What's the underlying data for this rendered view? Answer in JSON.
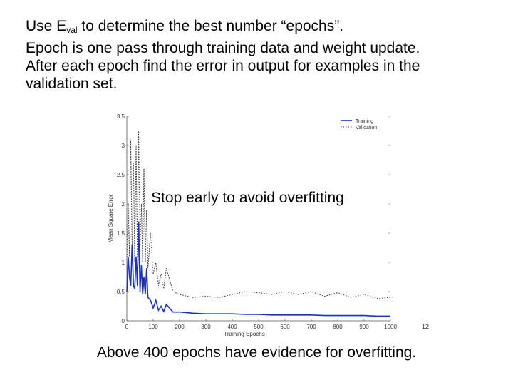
{
  "intro": {
    "line1_pre": "Use E",
    "line1_sub": "val",
    "line1_post": " to determine the best number “epochs”.",
    "line2": "Epoch is one pass through training data and weight update.",
    "line3": "After each epoch find the error in output for examples in the",
    "line4": "validation set."
  },
  "overlay_label": "Stop early to avoid overfitting",
  "caption": "Above 400 epochs have evidence for overfitting.",
  "slide_number": "12",
  "chart_data": {
    "type": "line",
    "xlabel": "Training Epochs",
    "ylabel": "Mean Square Error",
    "xlim": [
      0,
      1000
    ],
    "ylim": [
      0,
      3.5
    ],
    "xticks": [
      "0",
      "100",
      "200",
      "300",
      "400",
      "500",
      "600",
      "700",
      "800",
      "900",
      "1000"
    ],
    "yticks": [
      "0",
      "0.5",
      "1",
      "1.5",
      "2",
      "2.5",
      "3",
      "3.5"
    ],
    "legend_position": "top-right",
    "series": [
      {
        "name": "Training",
        "color": "#1a2fc9",
        "style": "solid",
        "x": [
          0,
          5,
          10,
          15,
          20,
          25,
          30,
          35,
          40,
          45,
          50,
          55,
          60,
          65,
          70,
          75,
          80,
          90,
          100,
          110,
          120,
          130,
          140,
          150,
          175,
          200,
          250,
          300,
          350,
          400,
          450,
          500,
          550,
          600,
          650,
          700,
          750,
          800,
          850,
          900,
          950,
          1000
        ],
        "y": [
          0.5,
          1.1,
          0.75,
          0.6,
          1.3,
          0.6,
          0.55,
          1.1,
          0.6,
          1.7,
          0.5,
          0.95,
          0.45,
          0.75,
          0.45,
          0.9,
          0.4,
          0.35,
          0.22,
          0.35,
          0.18,
          0.25,
          0.16,
          0.28,
          0.15,
          0.15,
          0.13,
          0.12,
          0.12,
          0.12,
          0.11,
          0.11,
          0.1,
          0.1,
          0.1,
          0.1,
          0.09,
          0.09,
          0.09,
          0.09,
          0.08,
          0.08
        ]
      },
      {
        "name": "Validation",
        "color": "#333333",
        "style": "dotted",
        "x": [
          0,
          5,
          10,
          15,
          20,
          25,
          30,
          35,
          40,
          45,
          50,
          55,
          60,
          65,
          70,
          75,
          80,
          90,
          100,
          110,
          120,
          130,
          140,
          150,
          175,
          200,
          250,
          300,
          350,
          400,
          450,
          500,
          550,
          600,
          650,
          700,
          750,
          800,
          850,
          900,
          950,
          1000
        ],
        "y": [
          1.0,
          2.0,
          1.1,
          3.1,
          1.2,
          2.7,
          1.0,
          3.0,
          1.1,
          3.25,
          1.2,
          2.0,
          1.0,
          2.6,
          1.0,
          1.9,
          0.9,
          1.5,
          0.8,
          1.0,
          0.6,
          0.8,
          0.55,
          0.9,
          0.5,
          0.45,
          0.4,
          0.42,
          0.4,
          0.45,
          0.5,
          0.48,
          0.45,
          0.5,
          0.45,
          0.5,
          0.42,
          0.48,
          0.4,
          0.45,
          0.38,
          0.4
        ]
      }
    ]
  }
}
